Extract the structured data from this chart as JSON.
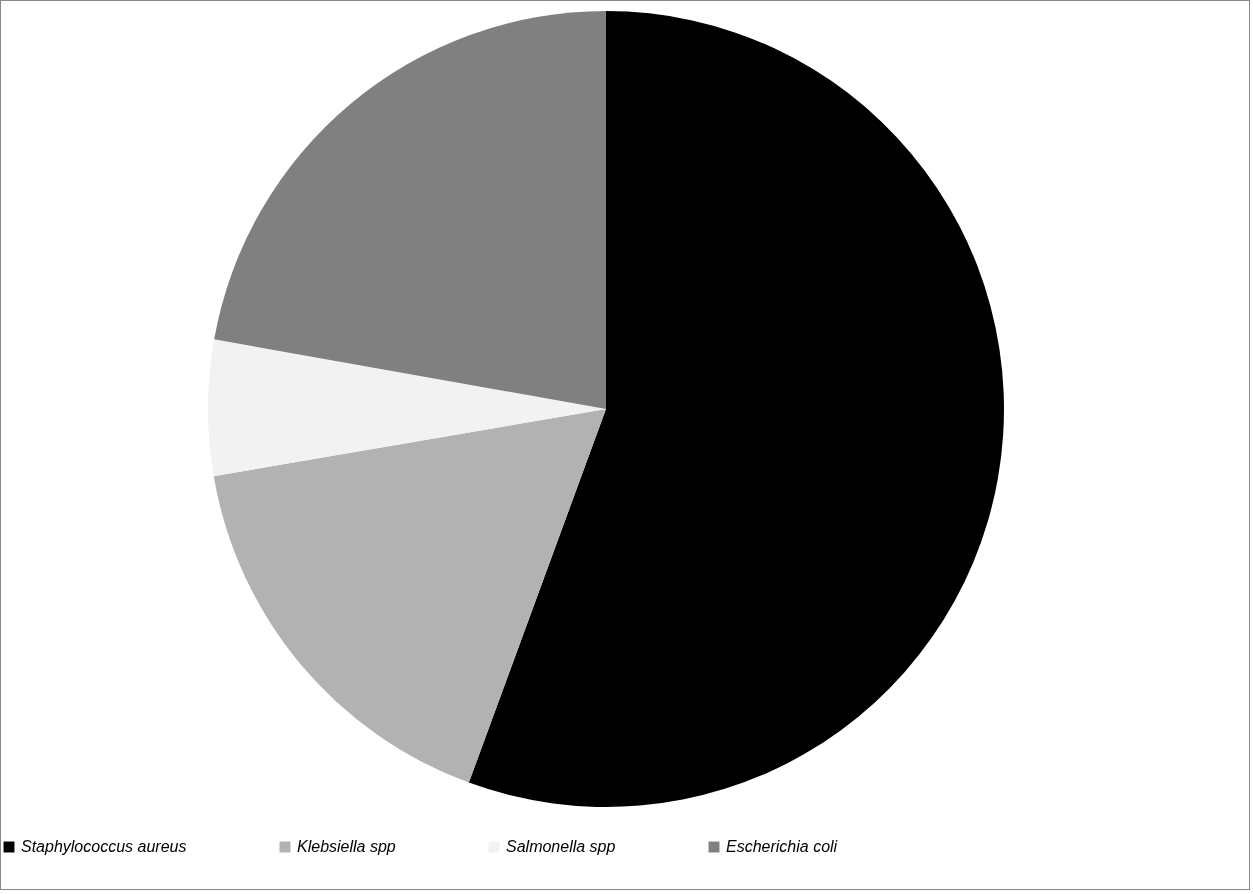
{
  "chart_data": {
    "type": "pie",
    "categories": [
      "Staphylococcus aureus",
      "Klebsiella spp",
      "Salmonella spp",
      "Escherichia coli"
    ],
    "values": [
      55.6,
      16.7,
      5.5,
      22.2
    ],
    "colors": [
      "#000000",
      "#b2b2b2",
      "#f2f2f2",
      "#808080"
    ],
    "legend": "bottom"
  }
}
